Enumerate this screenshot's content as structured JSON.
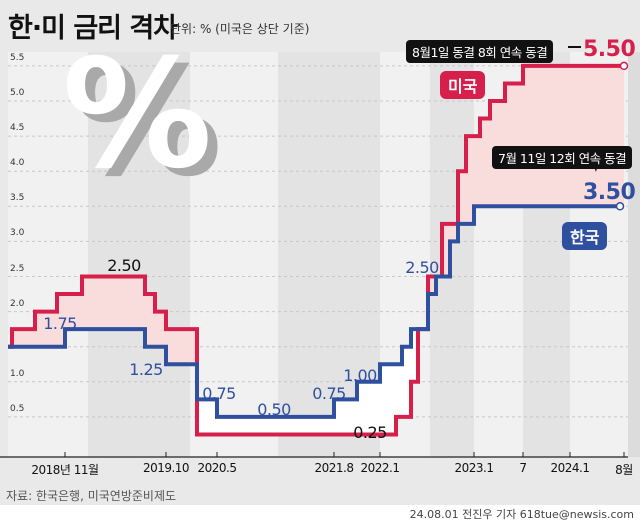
{
  "title": "한·미 금리 격차",
  "subtitle": "단위: % (미국은 상단 기준)",
  "decor_symbol": "%",
  "source": "자료: 한국은행, 미국연방준비제도",
  "credit": "24.08.01 전진우 기자 618tue@newsis.com",
  "colors": {
    "us": "#d71f4b",
    "korea": "#2f4f9f",
    "gap_fill": "#f9dcdc",
    "background": "#e9e9e9"
  },
  "chart_data": {
    "type": "line",
    "step": true,
    "title": "한·미 금리 격차",
    "ylabel": "%",
    "ylim": [
      0,
      5.5
    ],
    "y_ticks": [
      "5.5",
      "5.0",
      "4.5",
      "4.0",
      "3.5",
      "3.0",
      "2.5",
      "2.0",
      "1.0",
      "0.5"
    ],
    "x_ticks": [
      {
        "date": "2018-11",
        "label": "2018년 11월"
      },
      {
        "date": "2019-10",
        "label": "2019.10"
      },
      {
        "date": "2020-05",
        "label": "2020.5"
      },
      {
        "date": "2021-08",
        "label": "2021.8"
      },
      {
        "date": "2022-01",
        "label": "2022.1"
      },
      {
        "date": "2023-01",
        "label": "2023.1"
      },
      {
        "date": "2023-07",
        "label": "7"
      },
      {
        "date": "2024-01",
        "label": "2024.1"
      },
      {
        "date": "2024-08",
        "label": "8월"
      }
    ],
    "end_date": "2024-08",
    "series": [
      {
        "name": "미국",
        "color": "#d71f4b",
        "values": [
          [
            "2018-01",
            1.5
          ],
          [
            "2018-03",
            1.75
          ],
          [
            "2018-06",
            2.0
          ],
          [
            "2018-09",
            2.25
          ],
          [
            "2018-12",
            2.5
          ],
          [
            "2019-07",
            2.25
          ],
          [
            "2019-09",
            2.0
          ],
          [
            "2019-10",
            1.75
          ],
          [
            "2020-03",
            0.25
          ],
          [
            "2022-03",
            0.5
          ],
          [
            "2022-05",
            1.0
          ],
          [
            "2022-06",
            1.75
          ],
          [
            "2022-07",
            2.5
          ],
          [
            "2022-09",
            3.25
          ],
          [
            "2022-11",
            4.0
          ],
          [
            "2022-12",
            4.5
          ],
          [
            "2023-02",
            4.75
          ],
          [
            "2023-03",
            5.0
          ],
          [
            "2023-05",
            5.25
          ],
          [
            "2023-07",
            5.5
          ]
        ]
      },
      {
        "name": "한국",
        "color": "#2f4f9f",
        "values": [
          [
            "2018-01",
            1.5
          ],
          [
            "2018-11",
            1.75
          ],
          [
            "2019-07",
            1.5
          ],
          [
            "2019-10",
            1.25
          ],
          [
            "2020-03",
            0.75
          ],
          [
            "2020-05",
            0.5
          ],
          [
            "2021-08",
            0.75
          ],
          [
            "2021-11",
            1.0
          ],
          [
            "2022-01",
            1.25
          ],
          [
            "2022-04",
            1.5
          ],
          [
            "2022-05",
            1.75
          ],
          [
            "2022-07",
            2.25
          ],
          [
            "2022-08",
            2.5
          ],
          [
            "2022-10",
            3.0
          ],
          [
            "2022-11",
            3.25
          ],
          [
            "2023-01",
            3.5
          ]
        ]
      }
    ],
    "data_labels": [
      {
        "text": "2.50",
        "series": "미국"
      },
      {
        "text": "1.75",
        "series": "한국"
      },
      {
        "text": "1.25",
        "series": "한국"
      },
      {
        "text": "0.75",
        "series": "한국"
      },
      {
        "text": "0.50",
        "series": "한국"
      },
      {
        "text": "0.75",
        "series": "한국"
      },
      {
        "text": "1.00",
        "series": "한국"
      },
      {
        "text": "0.25",
        "series": "미국"
      },
      {
        "text": "2.50",
        "series": "한국"
      }
    ],
    "us_latest": "5.50",
    "korea_latest": "3.50",
    "us_callout": "8월1일 동결 8회 연속 동결",
    "korea_callout": "7월 11일 12회 연속 동결",
    "legend": {
      "us": "미국",
      "korea": "한국"
    }
  }
}
